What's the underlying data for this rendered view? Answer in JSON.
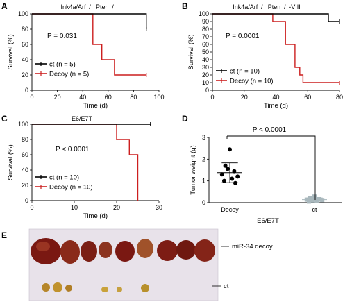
{
  "panels": {
    "A": {
      "letter": "A",
      "title": "Ink4a/Arf⁻/⁻ Pten⁻/⁻",
      "pvalue": "P = 0.031"
    },
    "B": {
      "letter": "B",
      "title": "Ink4a/Arf⁻/⁻ Pten⁻/⁻-VIII",
      "pvalue": "P = 0.0001"
    },
    "C": {
      "letter": "C",
      "title": "E6/E7T",
      "pvalue": "P < 0.0001"
    },
    "D": {
      "letter": "D",
      "pvalue": "P < 0.0001",
      "group_label": "E6/E7T"
    },
    "E": {
      "letter": "E",
      "label_top": "miR-34 decoy",
      "label_bottom": "ct"
    }
  },
  "colors": {
    "ct": "#000000",
    "decoy": "#cc1f1f",
    "ct_points": "#a9b8bd",
    "photo_bg": "#e8e2ea"
  },
  "chart_data": [
    {
      "type": "line",
      "panel": "A",
      "title": "Ink4a/Arf⁻/⁻ Pten⁻/⁻",
      "xlabel": "Time (d)",
      "ylabel": "Survival (%)",
      "xlim": [
        0,
        100
      ],
      "ylim": [
        0,
        100
      ],
      "xticks": [
        0,
        20,
        40,
        60,
        80,
        100
      ],
      "yticks": [
        0,
        20,
        40,
        60,
        80,
        100
      ],
      "annotation": "P = 0.031",
      "legend_position": "bottom-left",
      "series": [
        {
          "name": "ct (n = 5)",
          "color": "#000000",
          "x": [
            0,
            90,
            90
          ],
          "y": [
            100,
            100,
            80
          ],
          "censor": [
            [
              90,
              80
            ]
          ]
        },
        {
          "name": "Decoy (n = 5)",
          "color": "#cc1f1f",
          "x": [
            0,
            48,
            48,
            55,
            55,
            65,
            65,
            90
          ],
          "y": [
            100,
            100,
            60,
            60,
            40,
            40,
            20,
            20
          ],
          "censor": [
            [
              90,
              20
            ]
          ]
        }
      ]
    },
    {
      "type": "line",
      "panel": "B",
      "title": "Ink4a/Arf⁻/⁻ Pten⁻/⁻-VIII",
      "xlabel": "Time (d)",
      "ylabel": "Survival (%)",
      "xlim": [
        0,
        80
      ],
      "ylim": [
        0,
        100
      ],
      "xticks": [
        0,
        20,
        40,
        60,
        80
      ],
      "yticks": [
        0,
        10,
        20,
        30,
        40,
        50,
        60,
        70,
        80,
        90,
        100
      ],
      "annotation": "P = 0.0001",
      "legend_position": "bottom-left",
      "series": [
        {
          "name": "ct (n = 10)",
          "color": "#000000",
          "x": [
            0,
            73,
            73,
            80
          ],
          "y": [
            100,
            100,
            90,
            90
          ],
          "censor": [
            [
              80,
              90
            ]
          ]
        },
        {
          "name": "Decoy (n = 10)",
          "color": "#cc1f1f",
          "x": [
            0,
            38,
            38,
            46,
            46,
            52,
            52,
            55,
            55,
            57,
            57,
            80
          ],
          "y": [
            100,
            100,
            90,
            90,
            60,
            60,
            30,
            30,
            20,
            20,
            10,
            10
          ],
          "censor": [
            [
              80,
              10
            ]
          ]
        }
      ]
    },
    {
      "type": "line",
      "panel": "C",
      "title": "E6/E7T",
      "xlabel": "Time (d)",
      "ylabel": "Survival (%)",
      "xlim": [
        0,
        30
      ],
      "ylim": [
        0,
        100
      ],
      "xticks": [
        0,
        10,
        20,
        30
      ],
      "yticks": [
        0,
        20,
        40,
        60,
        80,
        100
      ],
      "annotation": "P < 0.0001",
      "legend_position": "bottom-left",
      "series": [
        {
          "name": "ct (n = 10)",
          "color": "#000000",
          "x": [
            0,
            28
          ],
          "y": [
            100,
            100
          ],
          "censor": [
            [
              28,
              100
            ]
          ]
        },
        {
          "name": "Decoy (n = 10)",
          "color": "#cc1f1f",
          "x": [
            0,
            20,
            20,
            23,
            23,
            25,
            25
          ],
          "y": [
            100,
            100,
            80,
            80,
            60,
            60,
            0
          ],
          "censor": []
        }
      ]
    },
    {
      "type": "scatter",
      "panel": "D",
      "ylabel": "Tumor weight (g)",
      "xlabel": "E6/E7T",
      "categories": [
        "Decoy",
        "ct"
      ],
      "ylim": [
        0,
        3
      ],
      "yticks": [
        0,
        1,
        2,
        3
      ],
      "annotation": "P < 0.0001",
      "series": [
        {
          "category": "Decoy",
          "color": "#000000",
          "marker": "circle",
          "values": [
            2.45,
            1.7,
            1.45,
            1.3,
            1.2,
            1.55,
            1.1,
            1.0,
            0.9
          ],
          "mean": 1.38,
          "sd_low": 0.92,
          "sd_high": 1.83
        },
        {
          "category": "ct",
          "color": "#a9b8bd",
          "marker": "square",
          "values": [
            0.28,
            0.22,
            0.16,
            0.14,
            0.12,
            0.1,
            0.08,
            0.05
          ],
          "mean": 0.14,
          "sd_low": 0.06,
          "sd_high": 0.22
        }
      ]
    }
  ]
}
